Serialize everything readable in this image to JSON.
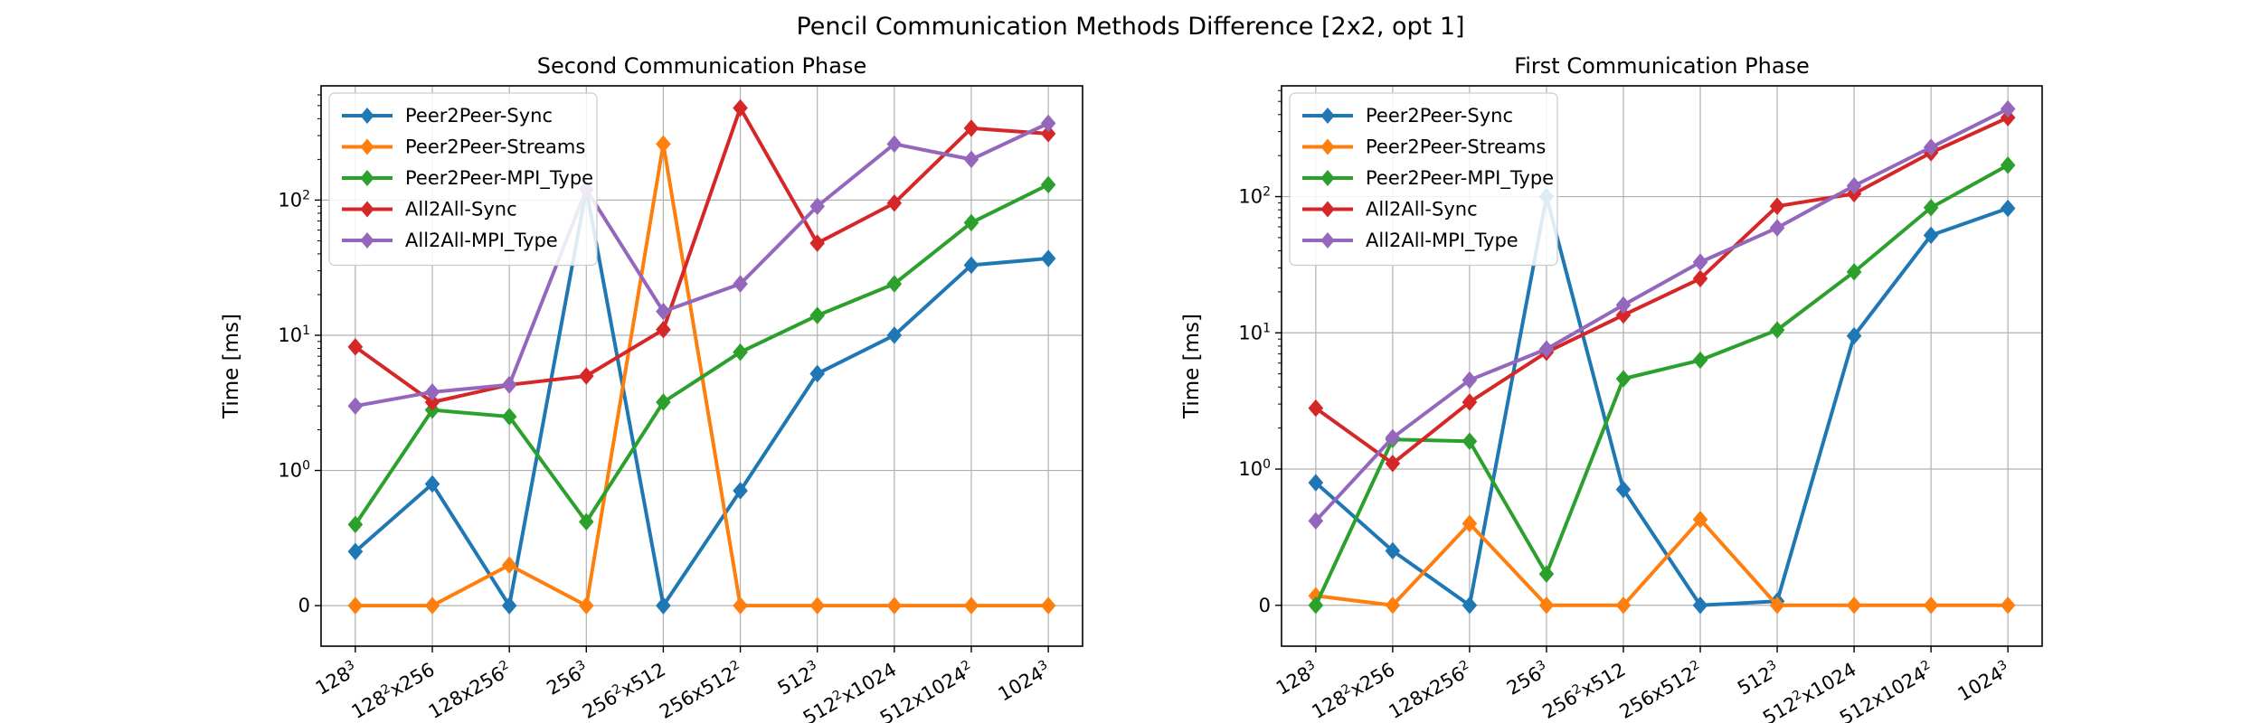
{
  "figure": {
    "suptitle": "Pencil Communication Methods Difference [2x2, opt 1]"
  },
  "chart_data": [
    {
      "type": "line",
      "title": "Second Communication Phase",
      "ylabel": "Time [ms]",
      "xlabel": "",
      "yscale": "symlog",
      "ylim": [
        -0.3,
        700
      ],
      "grid": true,
      "legend_position": "upper-left",
      "yticks": [
        {
          "value": 0,
          "label": "0"
        },
        {
          "value": 1,
          "label": "10^0"
        },
        {
          "value": 10,
          "label": "10^1"
        },
        {
          "value": 100,
          "label": "10^2"
        }
      ],
      "categories": [
        {
          "base": "128",
          "sup": "3",
          "rest": ""
        },
        {
          "base": "128",
          "sup": "2",
          "rest": "x256"
        },
        {
          "base": "128x256",
          "sup": "2",
          "rest": ""
        },
        {
          "base": "256",
          "sup": "3",
          "rest": ""
        },
        {
          "base": "256",
          "sup": "2",
          "rest": "x512"
        },
        {
          "base": "256x512",
          "sup": "2",
          "rest": ""
        },
        {
          "base": "512",
          "sup": "3",
          "rest": ""
        },
        {
          "base": "512",
          "sup": "2",
          "rest": "x1024"
        },
        {
          "base": "512x1024",
          "sup": "2",
          "rest": ""
        },
        {
          "base": "1024",
          "sup": "3",
          "rest": ""
        }
      ],
      "series": [
        {
          "name": "Peer2Peer-Sync",
          "color": "#1f77b4",
          "values": [
            0.4,
            0.9,
            0.0,
            120,
            0.0,
            0.85,
            5.2,
            10,
            33,
            37
          ]
        },
        {
          "name": "Peer2Peer-Streams",
          "color": "#ff7f0e",
          "values": [
            0.0,
            0.0,
            0.3,
            0.0,
            260,
            0.0,
            0.0,
            0.0,
            0.0,
            0.0
          ]
        },
        {
          "name": "Peer2Peer-MPI_Type",
          "color": "#2ca02c",
          "values": [
            0.6,
            2.8,
            2.5,
            0.62,
            3.2,
            7.5,
            14,
            24,
            68,
            130
          ]
        },
        {
          "name": "All2All-Sync",
          "color": "#d62728",
          "values": [
            8.2,
            3.2,
            4.3,
            5.0,
            11,
            480,
            48,
            95,
            340,
            310
          ]
        },
        {
          "name": "All2All-MPI_Type",
          "color": "#9467bd",
          "values": [
            3.0,
            3.8,
            4.3,
            120,
            15,
            24,
            90,
            260,
            200,
            370
          ]
        }
      ]
    },
    {
      "type": "line",
      "title": "First Communication Phase",
      "ylabel": "Time [ms]",
      "xlabel": "",
      "yscale": "symlog",
      "ylim": [
        -0.3,
        650
      ],
      "grid": true,
      "legend_position": "upper-left",
      "yticks": [
        {
          "value": 0,
          "label": "0"
        },
        {
          "value": 1,
          "label": "10^0"
        },
        {
          "value": 10,
          "label": "10^1"
        },
        {
          "value": 100,
          "label": "10^2"
        }
      ],
      "categories": [
        {
          "base": "128",
          "sup": "3",
          "rest": ""
        },
        {
          "base": "128",
          "sup": "2",
          "rest": "x256"
        },
        {
          "base": "128x256",
          "sup": "2",
          "rest": ""
        },
        {
          "base": "256",
          "sup": "3",
          "rest": ""
        },
        {
          "base": "256",
          "sup": "2",
          "rest": "x512"
        },
        {
          "base": "256x512",
          "sup": "2",
          "rest": ""
        },
        {
          "base": "512",
          "sup": "3",
          "rest": ""
        },
        {
          "base": "512",
          "sup": "2",
          "rest": "x1024"
        },
        {
          "base": "512x1024",
          "sup": "2",
          "rest": ""
        },
        {
          "base": "1024",
          "sup": "3",
          "rest": ""
        }
      ],
      "series": [
        {
          "name": "Peer2Peer-Sync",
          "color": "#1f77b4",
          "values": [
            0.9,
            0.4,
            0.0,
            100,
            0.85,
            0.0,
            0.03,
            9.5,
            52,
            82
          ]
        },
        {
          "name": "Peer2Peer-Streams",
          "color": "#ff7f0e",
          "values": [
            0.07,
            0.0,
            0.6,
            0.0,
            0.0,
            0.63,
            0.0,
            0.0,
            0.0,
            0.0
          ]
        },
        {
          "name": "Peer2Peer-MPI_Type",
          "color": "#2ca02c",
          "values": [
            0.0,
            1.65,
            1.6,
            0.23,
            4.6,
            6.3,
            10.5,
            28,
            83,
            170
          ]
        },
        {
          "name": "All2All-Sync",
          "color": "#d62728",
          "values": [
            2.8,
            1.1,
            3.1,
            7.2,
            13.5,
            25,
            85,
            105,
            210,
            380
          ]
        },
        {
          "name": "All2All-MPI_Type",
          "color": "#9467bd",
          "values": [
            0.62,
            1.7,
            4.5,
            7.6,
            16,
            33,
            59,
            120,
            230,
            440
          ]
        }
      ]
    }
  ]
}
